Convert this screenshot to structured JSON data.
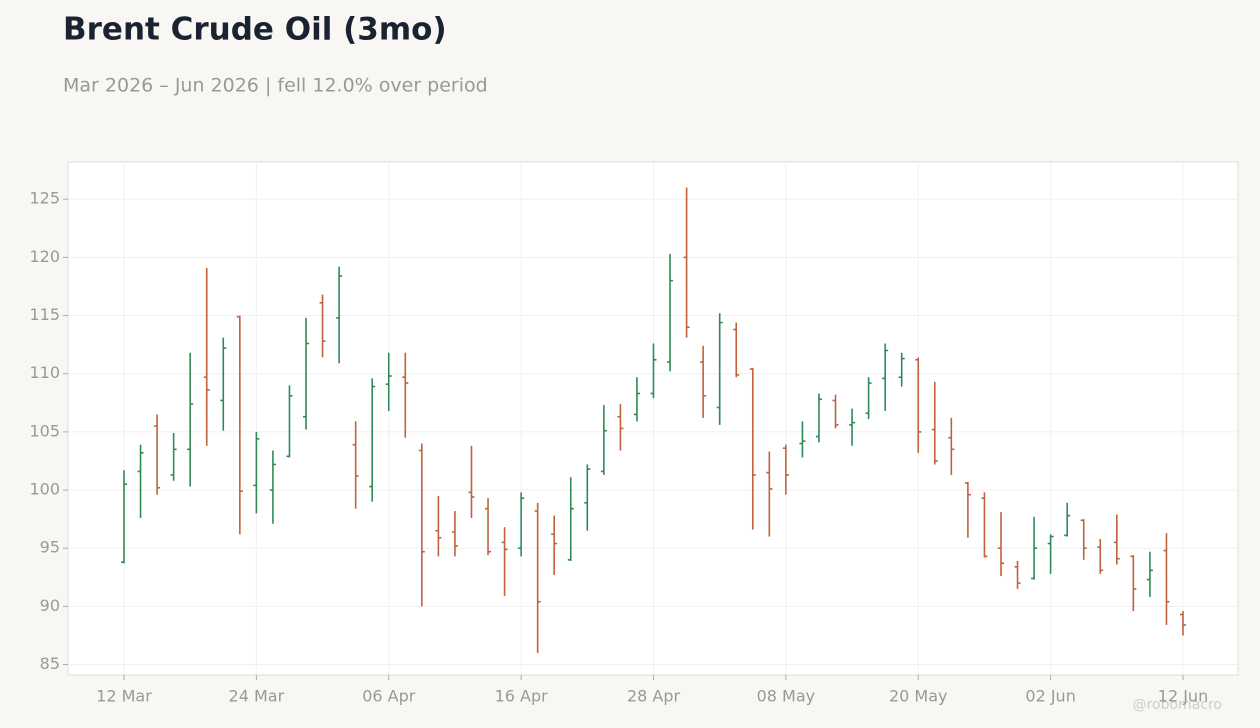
{
  "chart_data": {
    "type": "ohlc",
    "title": "Brent Crude Oil (3mo)",
    "subtitle": "Mar 2026 – Jun 2026 | fell 12.0% over period",
    "watermark": "@robomacro",
    "categories": [
      "12 Mar",
      null,
      null,
      null,
      null,
      null,
      null,
      null,
      "24 Mar",
      null,
      null,
      null,
      null,
      null,
      null,
      null,
      "06 Apr",
      null,
      null,
      null,
      null,
      null,
      null,
      null,
      "16 Apr",
      null,
      null,
      null,
      null,
      null,
      null,
      null,
      "28 Apr",
      null,
      null,
      null,
      null,
      null,
      null,
      null,
      "08 May",
      null,
      null,
      null,
      null,
      null,
      null,
      null,
      "20 May",
      null,
      null,
      null,
      null,
      null,
      null,
      null,
      "02 Jun",
      null,
      null,
      null,
      null,
      null,
      null,
      null,
      "12 Jun"
    ],
    "open": [
      93.8,
      101.6,
      105.5,
      101.3,
      103.5,
      109.7,
      107.7,
      114.9,
      100.4,
      100.0,
      102.9,
      106.3,
      116.1,
      114.8,
      103.9,
      100.3,
      109.1,
      109.7,
      103.4,
      96.5,
      96.4,
      99.8,
      98.4,
      95.5,
      95.0,
      98.2,
      96.2,
      94.0,
      98.9,
      101.6,
      106.3,
      106.5,
      108.3,
      111.0,
      120.0,
      111.0,
      107.1,
      113.8,
      110.4,
      101.5,
      103.6,
      104.0,
      104.6,
      107.7,
      105.6,
      106.6,
      109.6,
      109.7,
      111.2,
      105.2,
      104.5,
      100.6,
      99.3,
      95.0,
      93.4,
      92.4,
      95.4,
      96.1,
      97.4,
      95.1,
      95.5,
      94.3,
      92.3,
      94.8,
      89.3
    ],
    "high": [
      101.7,
      103.9,
      106.5,
      104.9,
      111.8,
      119.1,
      113.1,
      115.0,
      105.0,
      103.4,
      109.0,
      114.8,
      116.8,
      119.2,
      105.9,
      109.6,
      111.8,
      111.8,
      104.0,
      99.5,
      98.2,
      103.8,
      99.3,
      96.8,
      99.8,
      98.9,
      97.8,
      101.1,
      102.2,
      107.3,
      107.4,
      109.7,
      112.6,
      120.3,
      126.0,
      112.4,
      115.2,
      114.4,
      110.5,
      103.3,
      103.9,
      105.9,
      108.3,
      108.2,
      107.0,
      109.7,
      112.6,
      111.8,
      111.4,
      109.3,
      106.2,
      100.7,
      99.8,
      98.1,
      93.9,
      97.7,
      96.2,
      98.9,
      97.5,
      95.8,
      97.9,
      94.4,
      94.7,
      96.3,
      89.6
    ],
    "low": [
      93.7,
      97.6,
      99.6,
      100.8,
      100.3,
      103.8,
      105.1,
      96.2,
      98.0,
      97.1,
      102.8,
      105.2,
      111.4,
      110.9,
      98.4,
      99.0,
      106.8,
      104.5,
      90.0,
      94.3,
      94.3,
      97.6,
      94.4,
      90.9,
      94.3,
      86.0,
      92.7,
      93.9,
      96.5,
      101.3,
      103.4,
      105.9,
      107.9,
      110.2,
      113.1,
      106.2,
      105.6,
      109.7,
      96.6,
      96.0,
      99.6,
      102.8,
      104.1,
      105.3,
      103.8,
      106.1,
      106.8,
      108.9,
      103.2,
      102.2,
      101.3,
      95.9,
      94.2,
      92.6,
      91.5,
      92.3,
      92.8,
      96.0,
      94.0,
      92.8,
      93.6,
      89.6,
      90.8,
      88.4,
      87.5
    ],
    "close": [
      100.5,
      103.2,
      100.2,
      103.5,
      107.4,
      108.6,
      112.2,
      99.9,
      104.4,
      102.2,
      108.1,
      112.6,
      112.8,
      118.4,
      101.2,
      108.9,
      109.8,
      109.2,
      94.7,
      95.9,
      95.2,
      99.4,
      94.7,
      94.9,
      99.3,
      90.4,
      95.4,
      98.4,
      101.8,
      105.1,
      105.3,
      108.3,
      111.2,
      118.0,
      114.0,
      108.1,
      114.4,
      109.9,
      101.3,
      100.1,
      101.3,
      104.2,
      107.8,
      105.6,
      105.8,
      109.2,
      112.0,
      111.3,
      105.0,
      102.5,
      103.5,
      99.6,
      94.3,
      93.7,
      92.0,
      95.0,
      96.0,
      97.8,
      95.0,
      93.1,
      94.1,
      91.5,
      93.1,
      90.4,
      88.4
    ],
    "up_color": "#2e8b57",
    "down_color": "#c0623d",
    "ylim": [
      84.1,
      128.2
    ],
    "yticks": [
      85,
      90,
      95,
      100,
      105,
      110,
      115,
      120,
      125
    ],
    "grid": true
  }
}
